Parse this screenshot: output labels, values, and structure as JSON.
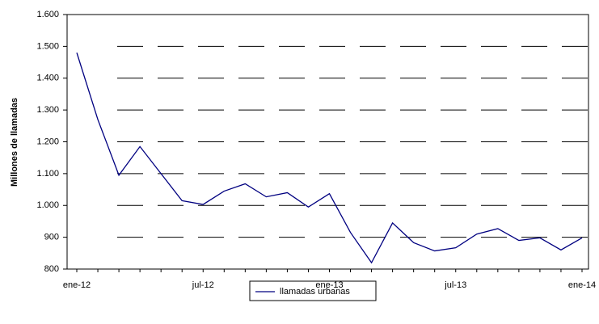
{
  "chart_data": {
    "type": "line",
    "y_label": "Millones de llamadas",
    "categories": [
      "ene-12",
      null,
      null,
      null,
      null,
      null,
      "jul-12",
      null,
      null,
      null,
      null,
      null,
      "ene-13",
      null,
      null,
      null,
      null,
      null,
      "jul-13",
      null,
      null,
      null,
      null,
      null,
      "ene-14"
    ],
    "series": [
      {
        "name": "llamadas urbanas",
        "color": "#000080",
        "values": [
          1480,
          1270,
          1095,
          1185,
          1100,
          1015,
          1003,
          1045,
          1068,
          1027,
          1040,
          995,
          1037,
          915,
          820,
          945,
          883,
          857,
          867,
          910,
          927,
          890,
          898,
          860,
          898
        ]
      }
    ],
    "ylim": [
      800,
      1600
    ],
    "yticks": [
      800,
      900,
      {
        "value": 1000,
        "label": "1.000"
      },
      {
        "value": 1100,
        "label": "1.100"
      },
      {
        "value": 1200,
        "label": "1.200"
      },
      {
        "value": 1300,
        "label": "1.300"
      },
      {
        "value": 1400,
        "label": "1.400"
      },
      {
        "value": 1500,
        "label": "1.500"
      },
      {
        "value": 1600,
        "label": "1.600"
      }
    ],
    "grid": true
  }
}
